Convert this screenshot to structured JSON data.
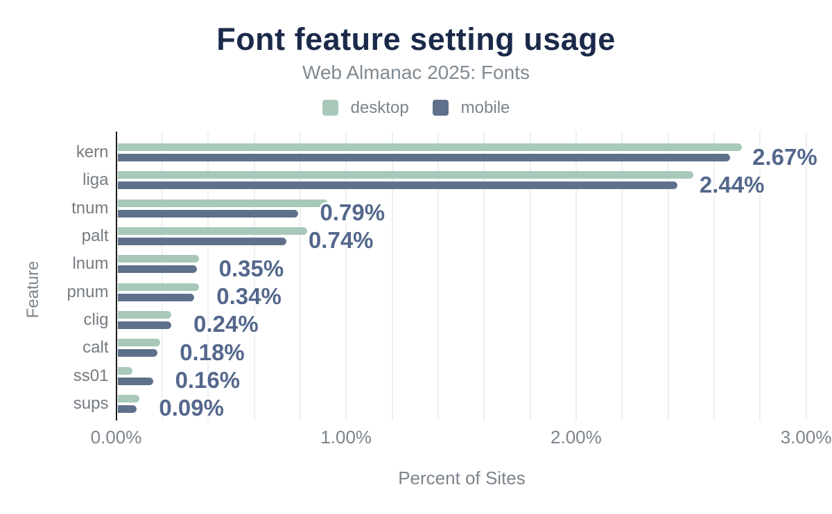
{
  "header": {
    "title": "Font feature setting usage",
    "subtitle": "Web Almanac 2025: Fonts"
  },
  "colors": {
    "title": "#1b2a4a",
    "desktop": "#a8c9b9",
    "mobile": "#5f708a",
    "value_label": "#54678c",
    "muted_text": "#7c848c",
    "gridline": "#edeff2",
    "axis_line": "#1a1a1a",
    "background": "#ffffff"
  },
  "chart_data": {
    "type": "bar",
    "orientation": "horizontal",
    "title": "Font feature setting usage",
    "subtitle": "Web Almanac 2025: Fonts",
    "xlabel": "Percent of Sites",
    "ylabel": "Feature",
    "categories": [
      "kern",
      "liga",
      "tnum",
      "palt",
      "lnum",
      "pnum",
      "clig",
      "calt",
      "ss01",
      "sups"
    ],
    "series": [
      {
        "name": "desktop",
        "color": "#a8c9b9",
        "values": [
          2.72,
          2.51,
          0.92,
          0.83,
          0.36,
          0.36,
          0.24,
          0.19,
          0.07,
          0.1
        ]
      },
      {
        "name": "mobile",
        "color": "#5f708a",
        "values": [
          2.67,
          2.44,
          0.79,
          0.74,
          0.35,
          0.34,
          0.24,
          0.18,
          0.16,
          0.09
        ]
      }
    ],
    "value_labels": [
      "2.67%",
      "2.44%",
      "0.79%",
      "0.74%",
      "0.35%",
      "0.34%",
      "0.24%",
      "0.18%",
      "0.16%",
      "0.09%"
    ],
    "value_labels_series": "mobile",
    "xlim": [
      0,
      3
    ],
    "x_ticks": [
      {
        "value": 0,
        "label": "0.00%"
      },
      {
        "value": 1,
        "label": "1.00%"
      },
      {
        "value": 2,
        "label": "2.00%"
      },
      {
        "value": 3,
        "label": "3.00%"
      }
    ],
    "x_minor_grid_step": 0.2,
    "grid": true,
    "legend_position": "top"
  }
}
